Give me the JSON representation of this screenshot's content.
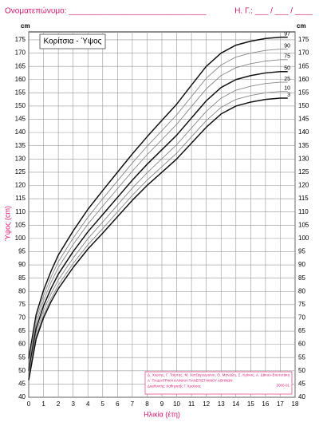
{
  "header": {
    "name_field": "Ονοματεπώνυμο: _______________________________",
    "date_field": "Η. Γ.: ___ / ___ / ____"
  },
  "chart_data": {
    "type": "line",
    "title": "Κορίτσια - Ύψος",
    "x_label": "Ηλικία (έτη)",
    "y_label": "Ύψος (cm)",
    "y_unit": "cm",
    "credits": [
      "Δ. Χιώτης, Γ. Τσίρτης, Μ. Χατζηγεωργίου, Θ. Μανώλη, Σ. Κρίκος, Α. Δάκου-Βουτετάκη",
      "Α΄ ΠΑΙΔΙΑΤΡΙΚΗ ΚΛΙΝΙΚΗ ΠΑΝΕΠΙΣΤΗΜΙΟΥ ΑΘΗΝΩΝ",
      "Διευθυντής: Καθηγητής Γ. Χρούσος",
      "2000-01"
    ],
    "x": [
      0,
      0.5,
      1,
      1.5,
      2,
      3,
      4,
      5,
      6,
      7,
      8,
      9,
      10,
      11,
      12,
      13,
      14,
      15,
      16,
      17,
      17.5
    ],
    "series": [
      {
        "name": "97",
        "color": "#111111",
        "values": [
          54.6,
          71.2,
          80.4,
          87.5,
          93.7,
          102.8,
          111,
          118.1,
          125,
          131.9,
          138.4,
          144.6,
          150.7,
          157.9,
          165,
          170,
          173,
          174.5,
          175.5,
          176,
          176
        ]
      },
      {
        "name": "90",
        "color": "#888888",
        "values": [
          53,
          69.4,
          78.3,
          85.3,
          91.2,
          100.1,
          108,
          115,
          121.7,
          128.5,
          134.8,
          140.7,
          146.7,
          153.6,
          160.5,
          165.5,
          168.5,
          170,
          171,
          171.5,
          171.5
        ]
      },
      {
        "name": "75",
        "color": "#888888",
        "values": [
          51.6,
          67.8,
          76.5,
          83.3,
          89,
          97.7,
          105.4,
          112.2,
          118.8,
          125.4,
          131.6,
          137.3,
          143.1,
          149.8,
          156.5,
          161.5,
          164.5,
          166,
          167,
          167.5,
          167.5
        ]
      },
      {
        "name": "50",
        "color": "#111111",
        "values": [
          50,
          66,
          74.5,
          81,
          86.5,
          95,
          102.5,
          109,
          115.5,
          122,
          128,
          133.5,
          139,
          145.5,
          152,
          157,
          160,
          161.5,
          162.5,
          163,
          163
        ]
      },
      {
        "name": "25",
        "color": "#888888",
        "values": [
          48.6,
          64.4,
          72.7,
          79,
          84.3,
          92.6,
          99.9,
          106.2,
          112.6,
          119,
          124.8,
          130.1,
          135.4,
          141.7,
          148,
          153,
          156,
          157.5,
          158.5,
          159,
          159
        ]
      },
      {
        "name": "10",
        "color": "#888888",
        "values": [
          47.4,
          63,
          71.1,
          77.2,
          82.4,
          90.5,
          97.6,
          103.7,
          110,
          116.3,
          122,
          127.1,
          132.2,
          138.4,
          144.5,
          149.5,
          152.5,
          154,
          155,
          155.5,
          155.5
        ]
      },
      {
        "name": "3",
        "color": "#111111",
        "values": [
          46.5,
          62,
          70,
          76,
          81,
          89,
          96,
          102,
          108.2,
          114.4,
          120,
          125,
          130,
          136,
          142,
          147,
          150,
          151.5,
          152.5,
          153,
          153
        ]
      }
    ],
    "xlim": [
      0,
      18
    ],
    "xticks": [
      0,
      1,
      2,
      3,
      4,
      5,
      6,
      7,
      8,
      9,
      10,
      11,
      12,
      13,
      14,
      15,
      16,
      17,
      18
    ],
    "ylim": [
      40,
      178
    ],
    "yticks": [
      40,
      45,
      50,
      55,
      60,
      65,
      70,
      75,
      80,
      85,
      90,
      95,
      100,
      105,
      110,
      115,
      120,
      125,
      130,
      135,
      140,
      145,
      150,
      155,
      160,
      165,
      170,
      175
    ],
    "grid": true
  }
}
